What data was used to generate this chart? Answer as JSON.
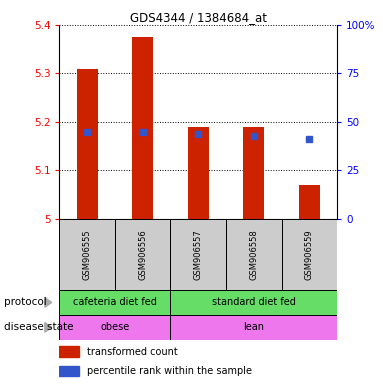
{
  "title": "GDS4344 / 1384684_at",
  "samples": [
    "GSM906555",
    "GSM906556",
    "GSM906557",
    "GSM906558",
    "GSM906559"
  ],
  "bar_values": [
    5.31,
    5.375,
    5.19,
    5.19,
    5.07
  ],
  "bar_base": 5.0,
  "blue_y": [
    5.18,
    5.18,
    5.175,
    5.17,
    5.165
  ],
  "ylim": [
    5.0,
    5.4
  ],
  "yticks": [
    5.0,
    5.1,
    5.2,
    5.3,
    5.4
  ],
  "ytick_labels": [
    "5",
    "5.1",
    "5.2",
    "5.3",
    "5.4"
  ],
  "right_yticks": [
    0,
    25,
    50,
    75,
    100
  ],
  "right_ytick_labels": [
    "0",
    "25",
    "50",
    "75",
    "100%"
  ],
  "bar_color": "#cc2200",
  "blue_color": "#3355cc",
  "protocol_color": "#66dd66",
  "disease_color": "#ee77ee",
  "sample_box_color": "#cccccc",
  "label_row1": "protocol",
  "label_row2": "disease state",
  "legend_red": "transformed count",
  "legend_blue": "percentile rank within the sample",
  "proto_spans": [
    [
      0,
      1,
      "cafeteria diet fed"
    ],
    [
      2,
      4,
      "standard diet fed"
    ]
  ],
  "disease_spans": [
    [
      0,
      1,
      "obese"
    ],
    [
      2,
      4,
      "lean"
    ]
  ]
}
